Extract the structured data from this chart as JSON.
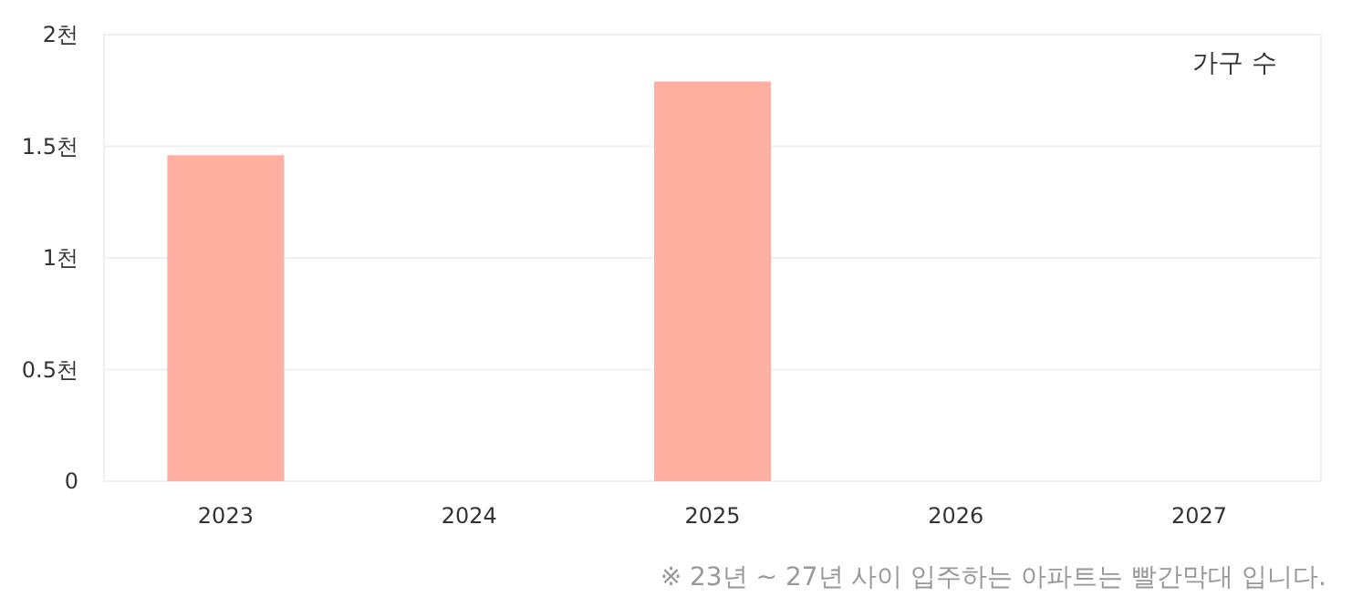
{
  "chart_data": {
    "type": "bar",
    "categories": [
      "2023",
      "2024",
      "2025",
      "2026",
      "2027"
    ],
    "series": [
      {
        "name": "가구 수",
        "color": "#ffb0a0",
        "values": [
          1.46,
          null,
          1.79,
          null,
          null
        ]
      }
    ],
    "ylim": [
      0,
      2
    ],
    "yticks": [
      0,
      {
        "value": 0.5,
        "label": "0.5천"
      },
      {
        "value": 1,
        "label": "1천"
      },
      {
        "value": 1.5,
        "label": "1.5천"
      },
      {
        "value": 2,
        "label": "2천"
      }
    ],
    "grid": "y",
    "legend": "top right",
    "annotations": [
      "※ 23년 ~ 27년 사이 입주하는 아파트는 빨간막대 입니다."
    ]
  }
}
